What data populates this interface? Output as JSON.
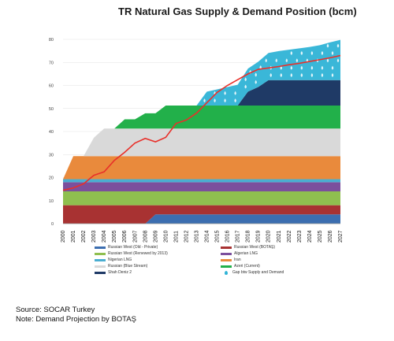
{
  "chart_data": {
    "type": "area",
    "title": "TR Natural Gas Supply & Demand Position (bcm)",
    "x": [
      "2000",
      "2001",
      "2002",
      "2003",
      "2004",
      "2005",
      "2006",
      "2007",
      "2008",
      "2009",
      "2010",
      "2011",
      "2012",
      "2013",
      "2014",
      "2015",
      "2016",
      "2017",
      "2018",
      "2019",
      "2020",
      "2021",
      "2022",
      "2023",
      "2024",
      "2025",
      "2026",
      "2027"
    ],
    "ylim": [
      0,
      80
    ],
    "yticks": [
      0,
      10,
      20,
      30,
      40,
      50,
      60,
      70,
      80
    ],
    "grid": true,
    "stacked": true,
    "series": [
      {
        "name": "Russian West (Old - Private)",
        "color": "#3c6eb0",
        "values": [
          0,
          0,
          0,
          0,
          0,
          0,
          0,
          0,
          0,
          4,
          4,
          4,
          4,
          4,
          4,
          4,
          4,
          4,
          4,
          4,
          4,
          4,
          4,
          4,
          4,
          4,
          4,
          4
        ]
      },
      {
        "name": "Russian West (BOTAŞ)",
        "color": "#a83232",
        "values": [
          8,
          8,
          8,
          8,
          8,
          8,
          8,
          8,
          8,
          4,
          4,
          4,
          4,
          4,
          4,
          4,
          4,
          4,
          4,
          4,
          4,
          4,
          4,
          4,
          4,
          4,
          4,
          4
        ]
      },
      {
        "name": "Russian West (Renewed by 2013)",
        "color": "#8fbf4f",
        "values": [
          6,
          6,
          6,
          6,
          6,
          6,
          6,
          6,
          6,
          6,
          6,
          6,
          6,
          6,
          6,
          6,
          6,
          6,
          6,
          6,
          6,
          6,
          6,
          6,
          6,
          6,
          6,
          6
        ]
      },
      {
        "name": "Algerian LNG",
        "color": "#7b4f9d",
        "values": [
          4,
          4,
          4,
          4,
          4,
          4,
          4,
          4,
          4,
          4,
          4,
          4,
          4,
          4,
          4,
          4,
          4,
          4,
          4,
          4,
          4,
          4,
          4,
          4,
          4,
          4,
          4,
          4
        ]
      },
      {
        "name": "Nigerian LNG",
        "color": "#4aaed1",
        "values": [
          1.3,
          1.3,
          1.3,
          1.3,
          1.3,
          1.3,
          1.3,
          1.3,
          1.3,
          1.3,
          1.3,
          1.3,
          1.3,
          1.3,
          1.3,
          1.3,
          1.3,
          1.3,
          1.3,
          1.3,
          1.3,
          1.3,
          1.3,
          1.3,
          1.3,
          1.3,
          1.3,
          1.3
        ]
      },
      {
        "name": "Iran",
        "color": "#e98a3c",
        "values": [
          0,
          10,
          10,
          10,
          10,
          10,
          10,
          10,
          10,
          10,
          10,
          10,
          10,
          10,
          10,
          10,
          10,
          10,
          10,
          10,
          10,
          10,
          10,
          10,
          10,
          10,
          10,
          10
        ]
      },
      {
        "name": "Russian (Blue Stream)",
        "color": "#d9d9d9",
        "values": [
          0,
          0,
          0,
          8,
          12,
          12,
          12,
          12,
          12,
          12,
          12,
          12,
          12,
          12,
          12,
          12,
          12,
          12,
          12,
          12,
          12,
          12,
          12,
          12,
          12,
          12,
          12,
          12
        ]
      },
      {
        "name": "Azeri (Current)",
        "color": "#22b04a",
        "values": [
          0,
          0,
          0,
          0,
          0,
          0,
          0,
          0,
          0,
          0,
          0,
          0,
          0,
          0,
          0,
          0,
          0,
          0,
          0,
          0,
          0,
          0,
          0,
          0,
          0,
          0,
          0,
          0
        ],
        "values_actual": [
          0,
          0,
          0,
          0,
          0,
          0,
          4,
          4,
          6.6,
          6.6,
          10,
          10,
          10,
          10,
          10,
          10,
          10,
          10,
          10,
          10,
          10,
          10,
          10,
          10,
          10,
          10,
          10,
          10
        ]
      },
      {
        "name": "Shah Deniz 2",
        "color": "#1f3a66",
        "values": [
          0,
          0,
          0,
          0,
          0,
          0,
          0,
          0,
          0,
          0,
          0,
          0,
          0,
          0,
          0,
          0,
          0,
          0,
          6,
          8,
          11,
          11,
          11,
          11,
          11,
          11,
          11,
          11
        ]
      },
      {
        "name": "Gap btw Supply and Demand",
        "color": "#2fb3d6",
        "values": [
          0,
          0,
          0,
          0,
          0,
          0,
          0,
          0,
          0,
          0,
          0,
          0,
          0,
          0,
          6,
          7,
          8,
          9,
          10,
          11,
          11.8,
          12.6,
          13.2,
          13.8,
          14.4,
          15.2,
          16.4,
          17.5
        ]
      }
    ],
    "demand": {
      "name": "Demand",
      "color": "#e8302a",
      "values": [
        14.5,
        15.5,
        17.3,
        21,
        22.5,
        27.5,
        31,
        35,
        37,
        35.5,
        37.5,
        43.5,
        45,
        48,
        52.5,
        57,
        60,
        62.5,
        65,
        67,
        67.6,
        68.2,
        69,
        69.6,
        70.4,
        71.2,
        72,
        73
      ]
    }
  },
  "legend": {
    "items": [
      {
        "label": "Russian West (Old - Private)",
        "color": "#3c6eb0",
        "shape": "bar"
      },
      {
        "label": "Russian West (BOTAŞ)",
        "color": "#a83232",
        "shape": "bar"
      },
      {
        "label": "Russian West (Renewed by 2013)",
        "color": "#8fbf4f",
        "shape": "bar"
      },
      {
        "label": "Algerian LNG",
        "color": "#7b4f9d",
        "shape": "bar"
      },
      {
        "label": "Nigerian LNG",
        "color": "#4aaed1",
        "shape": "bar"
      },
      {
        "label": "Iran",
        "color": "#e98a3c",
        "shape": "bar"
      },
      {
        "label": "Russian (Blue Stream)",
        "color": "#d9d9d9",
        "shape": "bar"
      },
      {
        "label": "Azeri (Current)",
        "color": "#22b04a",
        "shape": "bar"
      },
      {
        "label": "Shah Deniz 2",
        "color": "#1f3a66",
        "shape": "bar"
      },
      {
        "label": "Gap btw Supply and Demand",
        "color": "#2fb3d6",
        "shape": "drop"
      }
    ]
  },
  "footer": {
    "source": "Source: SOCAR Turkey",
    "note": "Note: Demand Projection by BOTAŞ"
  }
}
